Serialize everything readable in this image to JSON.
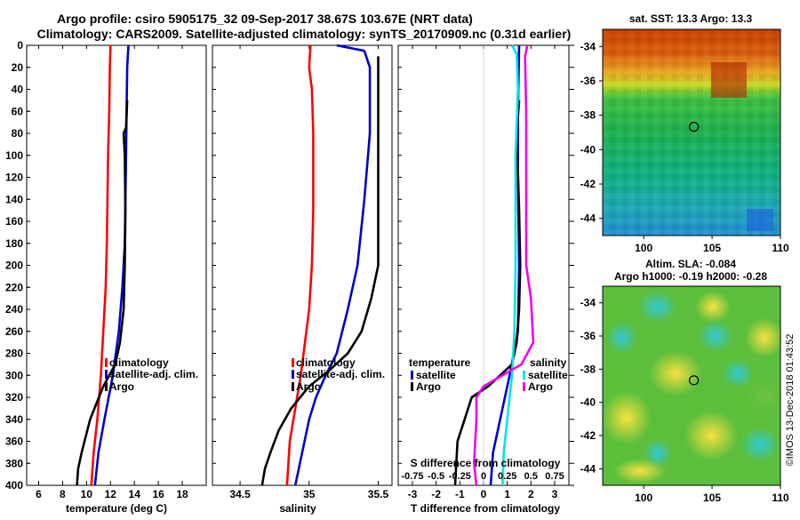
{
  "header": {
    "line1": "Argo profile: csiro 5905175_32 09-Sep-2017 38.67S 103.67E (NRT data)",
    "line2": "Climatology: CARS2009. Satellite-adjusted climatology: synTS_20170909.nc (0.31d earlier)"
  },
  "colors": {
    "red": "#ff0000",
    "blue": "#0000cc",
    "black": "#000000",
    "cyan": "#00e5ee",
    "magenta": "#ee00ee"
  },
  "depth_ticks": [
    0,
    20,
    40,
    60,
    80,
    100,
    120,
    140,
    160,
    180,
    200,
    220,
    240,
    260,
    280,
    300,
    320,
    340,
    360,
    380,
    400
  ],
  "chart_data": [
    {
      "type": "line",
      "title": "",
      "xlabel": "temperature (deg C)",
      "ylabel": "depth",
      "xlim": [
        5,
        20
      ],
      "ylim": [
        400,
        0
      ],
      "xticks": [
        6,
        8,
        10,
        12,
        14,
        16,
        18
      ],
      "xtick_labels": [
        "6",
        "8",
        "10",
        "12",
        "14",
        "16",
        "18"
      ],
      "legend": {
        "position": "bottom-left",
        "entries": [
          "climatology",
          "satellite-adj. clim.",
          "Argo"
        ]
      },
      "series": [
        {
          "name": "climatology",
          "color": "#ff0000",
          "points": [
            [
              12.0,
              0
            ],
            [
              11.95,
              20
            ],
            [
              11.9,
              60
            ],
            [
              11.8,
              100
            ],
            [
              11.75,
              140
            ],
            [
              11.7,
              180
            ],
            [
              11.6,
              220
            ],
            [
              11.4,
              260
            ],
            [
              11.2,
              300
            ],
            [
              10.9,
              340
            ],
            [
              10.6,
              370
            ],
            [
              10.4,
              400
            ]
          ]
        },
        {
          "name": "satellite-adj. clim.",
          "color": "#0000cc",
          "points": [
            [
              13.5,
              0
            ],
            [
              13.4,
              20
            ],
            [
              13.35,
              60
            ],
            [
              13.3,
              100
            ],
            [
              13.25,
              140
            ],
            [
              13.2,
              180
            ],
            [
              13.0,
              220
            ],
            [
              12.7,
              260
            ],
            [
              12.2,
              300
            ],
            [
              11.5,
              340
            ],
            [
              11.0,
              370
            ],
            [
              10.7,
              400
            ]
          ]
        },
        {
          "name": "Argo",
          "color": "#000000",
          "points": [
            [
              13.4,
              50
            ],
            [
              13.3,
              75
            ],
            [
              13.1,
              80
            ],
            [
              13.2,
              100
            ],
            [
              13.25,
              150
            ],
            [
              13.2,
              200
            ],
            [
              13.1,
              240
            ],
            [
              12.8,
              270
            ],
            [
              12.4,
              290
            ],
            [
              11.4,
              310
            ],
            [
              10.3,
              340
            ],
            [
              9.6,
              370
            ],
            [
              9.3,
              385
            ],
            [
              9.2,
              400
            ]
          ]
        }
      ]
    },
    {
      "type": "line",
      "title": "",
      "xlabel": "salinity",
      "ylabel": "depth",
      "xlim": [
        34.3,
        35.6
      ],
      "ylim": [
        400,
        0
      ],
      "xticks": [
        34.5,
        35,
        35.5
      ],
      "xtick_labels": [
        "34.5",
        "35",
        "35.5"
      ],
      "legend": {
        "position": "bottom-left",
        "entries": [
          "climatology",
          "satellite-adj. clim.",
          "Argo"
        ]
      },
      "series": [
        {
          "name": "climatology",
          "color": "#ff0000",
          "points": [
            [
              35.01,
              0
            ],
            [
              35.0,
              20
            ],
            [
              35.02,
              40
            ],
            [
              35.03,
              80
            ],
            [
              35.03,
              150
            ],
            [
              35.02,
              200
            ],
            [
              35.0,
              240
            ],
            [
              34.97,
              270
            ],
            [
              34.94,
              300
            ],
            [
              34.9,
              330
            ],
            [
              34.86,
              360
            ],
            [
              34.84,
              400
            ]
          ]
        },
        {
          "name": "satellite-adj. clim.",
          "color": "#0000cc",
          "points": [
            [
              35.2,
              0
            ],
            [
              35.4,
              5
            ],
            [
              35.44,
              20
            ],
            [
              35.44,
              80
            ],
            [
              35.4,
              140
            ],
            [
              35.35,
              200
            ],
            [
              35.28,
              240
            ],
            [
              35.2,
              280
            ],
            [
              35.12,
              300
            ],
            [
              35.05,
              320
            ],
            [
              35.0,
              340
            ],
            [
              34.95,
              370
            ],
            [
              34.9,
              400
            ]
          ]
        },
        {
          "name": "Argo",
          "color": "#000000",
          "points": [
            [
              35.5,
              10
            ],
            [
              35.5,
              100
            ],
            [
              35.5,
              180
            ],
            [
              35.5,
              200
            ],
            [
              35.45,
              230
            ],
            [
              35.38,
              260
            ],
            [
              35.28,
              280
            ],
            [
              35.15,
              295
            ],
            [
              35.0,
              310
            ],
            [
              34.87,
              330
            ],
            [
              34.78,
              350
            ],
            [
              34.72,
              370
            ],
            [
              34.68,
              385
            ],
            [
              34.66,
              400
            ]
          ]
        }
      ]
    },
    {
      "type": "line",
      "title": "",
      "xlabel": "T difference from climatology",
      "xlabel_top": "S difference from climatology",
      "ylabel": "depth",
      "xlim": [
        -3.6,
        3.6
      ],
      "ylim": [
        400,
        0
      ],
      "xticks": [
        -3,
        -2,
        -1,
        0,
        1,
        2,
        3
      ],
      "xtick_labels": [
        "-3",
        "-2",
        "-1",
        "0",
        "1",
        "2",
        "3"
      ],
      "s_tick_labels": [
        "-0.75",
        "-0.5",
        "-0.25",
        "0",
        "0.25",
        "0.5",
        "0.75"
      ],
      "legend": {
        "position": "bottom",
        "entries": [
          "temperature satellite",
          "temperature Argo",
          "salinity satellite",
          "salinity Argo"
        ]
      },
      "series": [
        {
          "name": "temperature satellite",
          "color": "#0000cc",
          "points": [
            [
              1.5,
              0
            ],
            [
              1.45,
              60
            ],
            [
              1.45,
              120
            ],
            [
              1.5,
              200
            ],
            [
              1.45,
              260
            ],
            [
              1.1,
              300
            ],
            [
              0.7,
              340
            ],
            [
              0.4,
              370
            ],
            [
              0.3,
              400
            ]
          ]
        },
        {
          "name": "temperature Argo",
          "color": "#000000",
          "points": [
            [
              1.5,
              50
            ],
            [
              1.4,
              80
            ],
            [
              1.5,
              150
            ],
            [
              1.55,
              200
            ],
            [
              1.5,
              240
            ],
            [
              1.4,
              270
            ],
            [
              1.2,
              290
            ],
            [
              0.2,
              310
            ],
            [
              -0.5,
              320
            ],
            [
              -0.8,
              340
            ],
            [
              -1.1,
              360
            ],
            [
              -1.2,
              400
            ]
          ]
        },
        {
          "name": "salinity satellite",
          "color": "#00e5ee",
          "points": [
            [
              1.2,
              0
            ],
            [
              1.4,
              8
            ],
            [
              1.45,
              40
            ],
            [
              1.35,
              100
            ],
            [
              1.35,
              200
            ],
            [
              1.3,
              260
            ],
            [
              1.2,
              300
            ],
            [
              1.0,
              340
            ],
            [
              0.85,
              370
            ],
            [
              0.8,
              400
            ]
          ]
        },
        {
          "name": "salinity Argo",
          "color": "#ee00ee",
          "points": [
            [
              1.85,
              0
            ],
            [
              1.75,
              10
            ],
            [
              1.8,
              60
            ],
            [
              1.8,
              200
            ],
            [
              2.0,
              230
            ],
            [
              2.1,
              270
            ],
            [
              1.6,
              290
            ],
            [
              0.0,
              310
            ],
            [
              -0.3,
              320
            ],
            [
              -0.3,
              340
            ],
            [
              -0.4,
              380
            ],
            [
              -0.3,
              400
            ]
          ]
        }
      ]
    }
  ],
  "panel1": {
    "xlabel": "temperature (deg C)",
    "legend": [
      "climatology",
      "satellite-adj. clim.",
      "Argo"
    ]
  },
  "panel2": {
    "xlabel": "salinity",
    "legend": [
      "climatology",
      "satellite-adj. clim.",
      "Argo"
    ]
  },
  "panel3": {
    "xlabel": "T difference from climatology",
    "s_label": "S difference from climatology",
    "legend_temp_title": "temperature",
    "legend_sal_title": "salinity",
    "legend_satellite": "satellite",
    "legend_argo": "Argo"
  },
  "map1": {
    "title": "sat. SST: 13.3 Argo: 13.3",
    "yticks": [
      "-34",
      "-36",
      "-38",
      "-40",
      "-42",
      "-44"
    ],
    "xticks": [
      "100",
      "105",
      "110"
    ],
    "marker": {
      "lon": 103.67,
      "lat": -38.67
    }
  },
  "map2": {
    "title1": "Altim. SLA: -0.084",
    "title2": "Argo h1000: -0.19 h2000: -0.28",
    "yticks": [
      "-34",
      "-36",
      "-38",
      "-40",
      "-42",
      "-44"
    ],
    "xticks": [
      "100",
      "105",
      "110"
    ],
    "marker": {
      "lon": 103.67,
      "lat": -38.67
    }
  },
  "credit": "©IMOS 13-Dec-2018 01:43:52"
}
